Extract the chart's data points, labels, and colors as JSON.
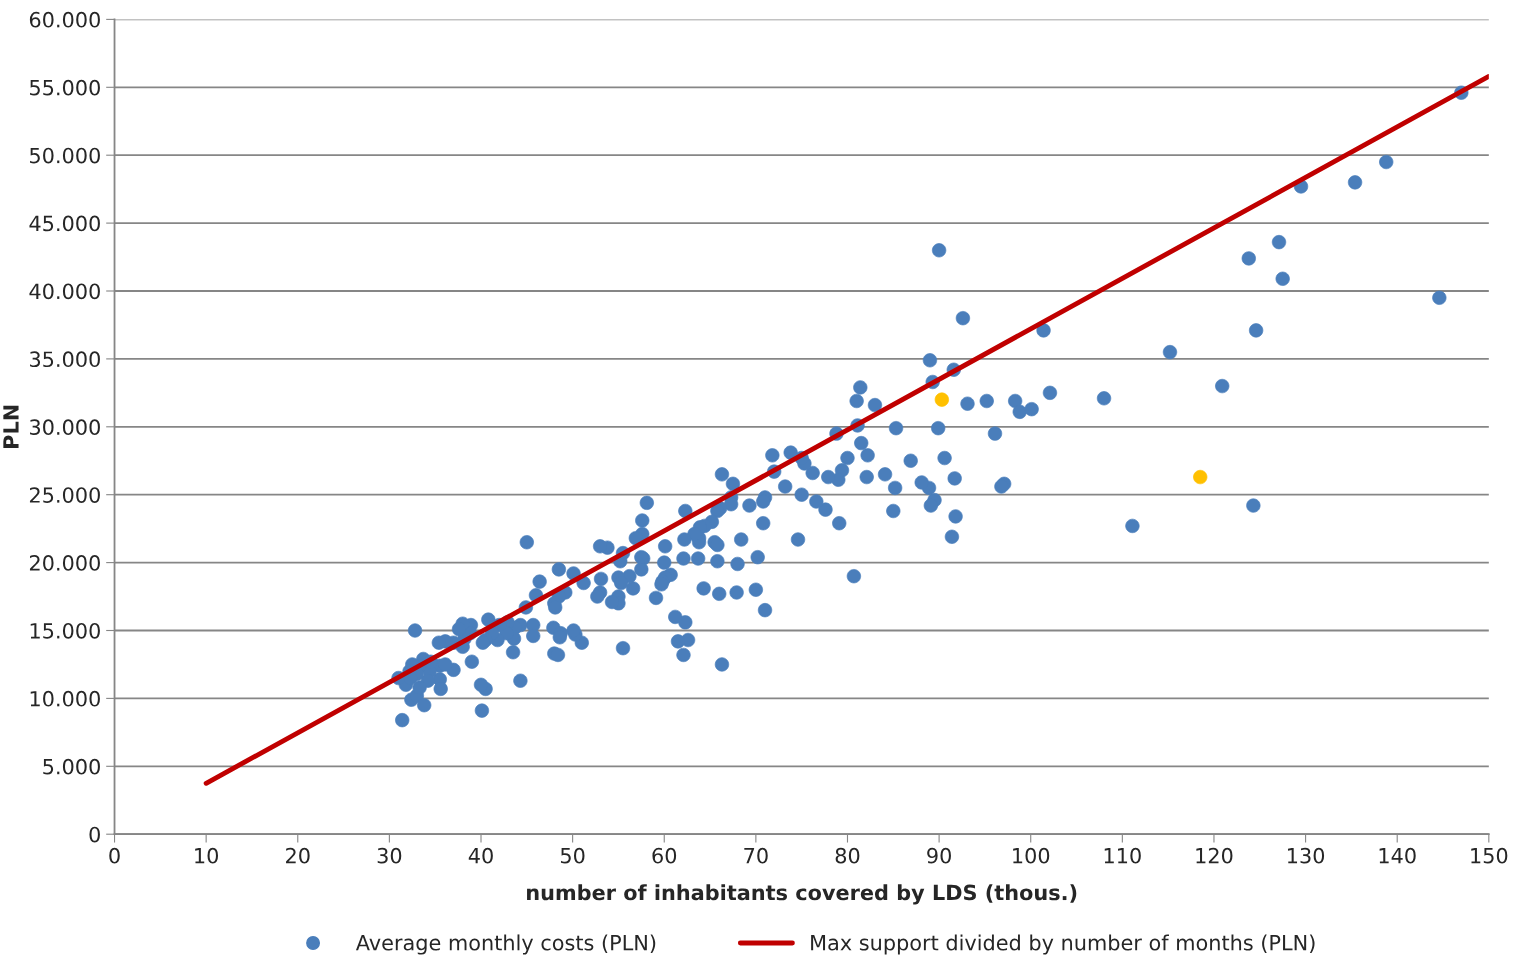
{
  "chart_data": {
    "type": "scatter",
    "xlabel": "number of inhabitants covered by LDS (thous.)",
    "ylabel": "PLN",
    "xlim": [
      0,
      150
    ],
    "xticks": [
      0,
      10,
      20,
      30,
      40,
      50,
      60,
      70,
      80,
      90,
      100,
      110,
      120,
      130,
      140,
      150
    ],
    "ylim": [
      0,
      60000
    ],
    "yticks": [
      0,
      {
        "value": 5000,
        "label": "5.000"
      },
      {
        "value": 10000,
        "label": "10.000"
      },
      {
        "value": 15000,
        "label": "15.000"
      },
      {
        "value": 20000,
        "label": "20.000"
      },
      {
        "value": 25000,
        "label": "25.000"
      },
      {
        "value": 30000,
        "label": "30.000"
      },
      {
        "value": 35000,
        "label": "35.000"
      },
      {
        "value": 40000,
        "label": "40.000"
      },
      {
        "value": 45000,
        "label": "45.000"
      },
      {
        "value": 50000,
        "label": "50.000"
      },
      {
        "value": 55000,
        "label": "55.000"
      },
      {
        "value": 60000,
        "label": "60.000"
      }
    ],
    "grid": "y",
    "legend": "bottom",
    "marker": "circle",
    "series": [
      {
        "name": "Average monthly costs (PLN)",
        "color": "#4a7ebb",
        "x": [
          147,
          138.8,
          135.4,
          129.5,
          127.1,
          123.8,
          127.5,
          144.6,
          124.6,
          115.2,
          120.9,
          124.3,
          111.1,
          108,
          102.1,
          101.4,
          98.3,
          98.8,
          100.1,
          97.1,
          96.8,
          96.1,
          95.2,
          93.1,
          92.6,
          91.6,
          90,
          89,
          89.3,
          89.9,
          90.6,
          91.7,
          91.8,
          91.4,
          89.5,
          89.1,
          88.9,
          88.1,
          86.9,
          85.3,
          85.2,
          85,
          84.1,
          83,
          82.2,
          82.1,
          81.5,
          81.4,
          81,
          81.1,
          80.7,
          80,
          79.4,
          78.8,
          79,
          77.9,
          79.1,
          77.6,
          76.6,
          76.2,
          75.3,
          75,
          75,
          74.6,
          73.8,
          73.2,
          71.8,
          72,
          71,
          70.8,
          70.8,
          70.2,
          70,
          71,
          69.3,
          68.4,
          68,
          67.9,
          67.5,
          67.3,
          67.3,
          66.3,
          66.1,
          65.8,
          65.5,
          65.8,
          65.8,
          66,
          66.3,
          65.2,
          64.4,
          63.9,
          63.8,
          63.8,
          63.7,
          64.3,
          63.3,
          62.6,
          62.3,
          62.1,
          62.3,
          62.2,
          62.1,
          61.2,
          61.5,
          60.7,
          60.1,
          60,
          59.8,
          59.7,
          59.1,
          60.1,
          58.1,
          57.6,
          57.6,
          56.9,
          57.7,
          57.5,
          57.5,
          56.6,
          56.2,
          55.5,
          55.2,
          55,
          55.3,
          55,
          55,
          55.5,
          54.3,
          53.8,
          53,
          53.1,
          53,
          52.7,
          51.2,
          51,
          50.3,
          50.1,
          50.1,
          49.2,
          48.5,
          48.5,
          48,
          48.1,
          47.9,
          48.7,
          48.6,
          48,
          48.4,
          46.4,
          46,
          45.7,
          45.7,
          45,
          44.9,
          44.3,
          43.7,
          43.6,
          43.5,
          44.3,
          42.9,
          42.8,
          42,
          41.8,
          41.2,
          40.8,
          40.5,
          40.5,
          40,
          40.1,
          40.2,
          38.9,
          38.8,
          38.2,
          38,
          37.6,
          37,
          38,
          39,
          37,
          36.1,
          35.4,
          35.5,
          35.5,
          35.6,
          34.4,
          34.2,
          33.7,
          33.3,
          33,
          32.8,
          32.5,
          32.2,
          31.8,
          31,
          31.4,
          32.4,
          33,
          33.8,
          33.3,
          34.5,
          32.3,
          36.1
        ],
        "values": [
          54600,
          49500,
          48000,
          47700,
          43600,
          42400,
          40900,
          39500,
          37100,
          35500,
          33000,
          24200,
          22700,
          32100,
          32500,
          37100,
          31900,
          31100,
          31300,
          25800,
          25600,
          29500,
          31900,
          31700,
          38000,
          34200,
          43000,
          34900,
          33300,
          29900,
          27700,
          26200,
          23400,
          21900,
          24600,
          24200,
          25500,
          25900,
          27500,
          29900,
          25500,
          23800,
          26500,
          31600,
          27900,
          26300,
          28800,
          32900,
          31900,
          30100,
          19000,
          27700,
          26800,
          29500,
          26100,
          26300,
          22900,
          23900,
          24500,
          26600,
          27300,
          27700,
          25000,
          21700,
          28100,
          25600,
          27900,
          26700,
          24800,
          24500,
          22900,
          20400,
          18000,
          16500,
          24200,
          21700,
          19900,
          17800,
          25800,
          24800,
          24300,
          26500,
          24000,
          23800,
          21500,
          21300,
          20100,
          17700,
          12500,
          23000,
          22700,
          22600,
          21500,
          21800,
          20300,
          18100,
          22100,
          14300,
          15600,
          13200,
          23800,
          21700,
          20300,
          16000,
          14200,
          19100,
          18900,
          20000,
          18600,
          18400,
          17400,
          21200,
          24400,
          23100,
          22100,
          21800,
          20300,
          19500,
          20400,
          18100,
          19000,
          20700,
          20100,
          18900,
          18500,
          17500,
          17000,
          13700,
          17100,
          21100,
          21200,
          18800,
          17800,
          17500,
          18500,
          14100,
          14700,
          15000,
          19200,
          17800,
          19500,
          17500,
          17000,
          16700,
          15200,
          14800,
          14500,
          13300,
          13200,
          18600,
          17600,
          15400,
          14600,
          21500,
          16700,
          15400,
          15200,
          14400,
          13400,
          11300,
          15600,
          14800,
          15400,
          14300,
          14800,
          15800,
          14300,
          10700,
          11000,
          9100,
          14100,
          15400,
          14800,
          14400,
          15500,
          15100,
          14100,
          13800,
          12700,
          12100,
          14200,
          14100,
          12400,
          11400,
          10700,
          12000,
          11300,
          12900,
          12400,
          11800,
          15000,
          12500,
          12000,
          11000,
          11500,
          8400,
          9900,
          10200,
          9500,
          10800,
          12700,
          11500,
          12500
        ]
      },
      {
        "color": "#ffc000",
        "x": [
          118.5,
          90.3
        ],
        "values": [
          26300,
          32000
        ]
      },
      {
        "name": "Max support divided by number of months (PLN)",
        "type": "line",
        "color": "#c00000",
        "marker": "none",
        "x": [
          10,
          150
        ],
        "values": [
          3750,
          55800
        ]
      }
    ]
  }
}
